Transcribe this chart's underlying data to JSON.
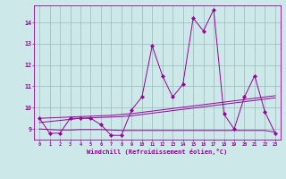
{
  "x": [
    0,
    1,
    2,
    3,
    4,
    5,
    6,
    7,
    8,
    9,
    10,
    11,
    12,
    13,
    14,
    15,
    16,
    17,
    18,
    19,
    20,
    21,
    22,
    23
  ],
  "main_line": [
    9.5,
    8.8,
    8.8,
    9.5,
    9.5,
    9.5,
    9.2,
    8.7,
    8.7,
    9.9,
    10.5,
    12.9,
    11.5,
    10.5,
    11.1,
    14.2,
    13.6,
    14.6,
    9.7,
    9.0,
    10.5,
    11.5,
    9.8,
    8.8
  ],
  "trend1": [
    9.3,
    9.35,
    9.4,
    9.45,
    9.5,
    9.52,
    9.54,
    9.56,
    9.58,
    9.62,
    9.68,
    9.74,
    9.8,
    9.86,
    9.92,
    9.98,
    10.04,
    10.1,
    10.16,
    10.22,
    10.28,
    10.34,
    10.4,
    10.46
  ],
  "trend2": [
    9.5,
    9.52,
    9.54,
    9.56,
    9.58,
    9.6,
    9.62,
    9.64,
    9.68,
    9.72,
    9.78,
    9.84,
    9.9,
    9.96,
    10.02,
    10.08,
    10.14,
    10.2,
    10.26,
    10.32,
    10.38,
    10.44,
    10.5,
    10.56
  ],
  "flat_line": [
    9.0,
    8.97,
    8.95,
    8.95,
    8.97,
    8.97,
    8.97,
    8.95,
    8.93,
    8.93,
    8.93,
    8.93,
    8.93,
    8.93,
    8.93,
    8.93,
    8.93,
    8.93,
    8.93,
    8.93,
    8.93,
    8.93,
    8.93,
    8.85
  ],
  "bg_color": "#cce8e8",
  "line_color": "#990099",
  "grid_color": "#99bbbb",
  "ylabel_values": [
    9,
    10,
    11,
    12,
    13,
    14
  ],
  "ylim": [
    8.5,
    14.8
  ],
  "xlim": [
    -0.5,
    23.5
  ],
  "xlabel": "Windchill (Refroidissement éolien,°C)",
  "marker": "D",
  "markersize": 2.2,
  "linewidth": 0.7
}
